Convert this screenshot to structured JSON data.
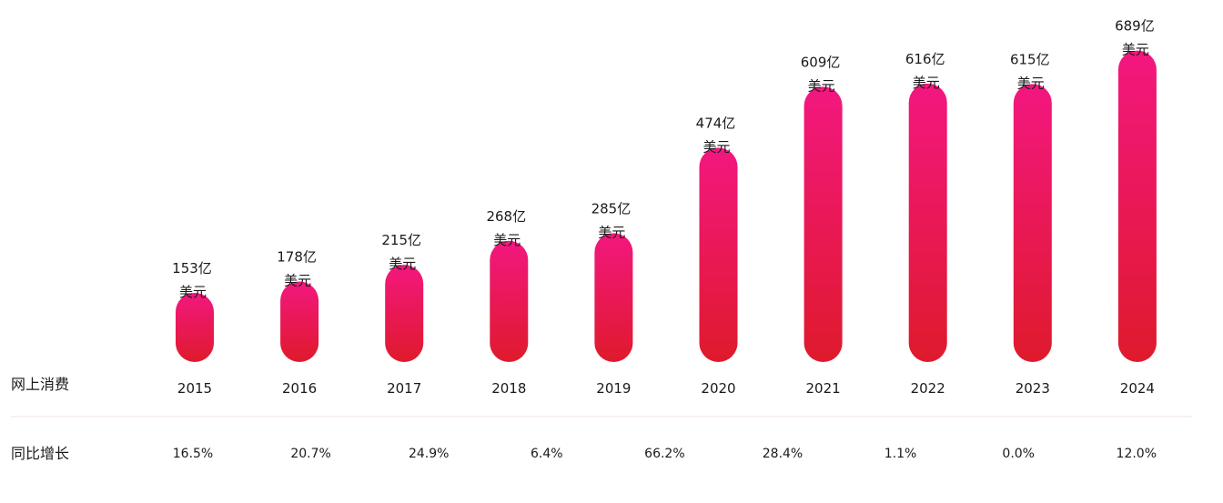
{
  "chart_data": {
    "type": "bar",
    "title": "",
    "categories": [
      "2015",
      "2016",
      "2017",
      "2018",
      "2019",
      "2020",
      "2021",
      "2022",
      "2023",
      "2024"
    ],
    "values": [
      153,
      178,
      215,
      268,
      285,
      474,
      609,
      616,
      615,
      689
    ],
    "value_labels": [
      [
        "153亿",
        "美元"
      ],
      [
        "178亿",
        "美元"
      ],
      [
        "215亿",
        "美元"
      ],
      [
        "268亿",
        "美元"
      ],
      [
        "285亿",
        "美元"
      ],
      [
        "474亿",
        "美元"
      ],
      [
        "609亿",
        "美元"
      ],
      [
        "616亿",
        "美元"
      ],
      [
        "615亿",
        "美元"
      ],
      [
        "689亿",
        "美元"
      ]
    ],
    "growth_labels": [
      "16.5%",
      "20.7%",
      "24.9%",
      "6.4%",
      "66.2%",
      "28.4%",
      "1.1%",
      "0.0%",
      "12.0%"
    ],
    "row_label_spending": "网上消费",
    "row_label_growth": "同比增长",
    "xlabel": "",
    "ylabel": "",
    "ylim": [
      0,
      700
    ],
    "grid": false,
    "legend": "none",
    "colors": {
      "bar_top": "#f3177f",
      "bar_bottom": "#df1a2c",
      "divider": "#f0e0e3"
    }
  }
}
